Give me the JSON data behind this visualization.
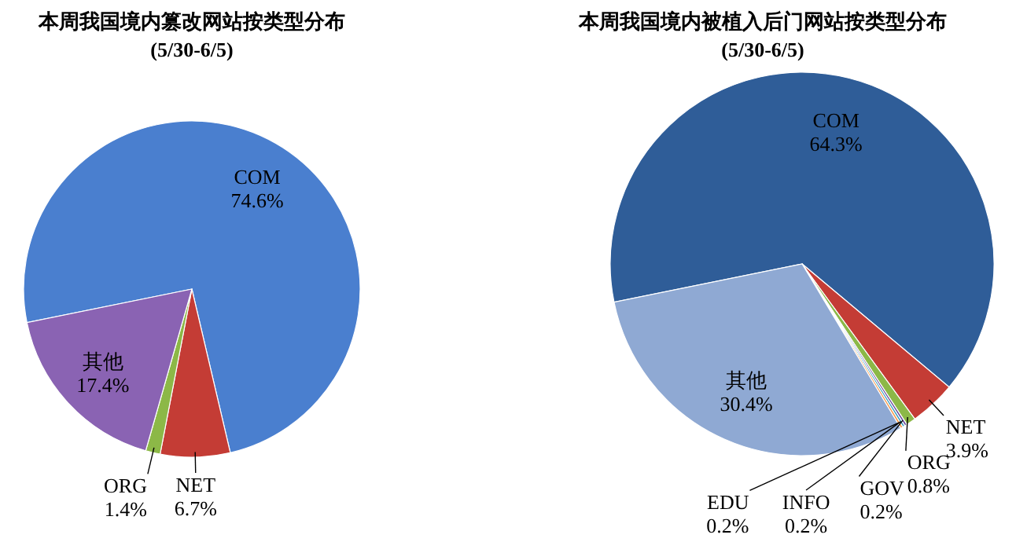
{
  "chart_data": [
    {
      "type": "pie",
      "title": "本周我国境内篡改网站按类型分布",
      "subtitle": "(5/30-6/5)",
      "categories": [
        "COM",
        "NET",
        "ORG",
        "其他"
      ],
      "values": [
        74.6,
        6.7,
        1.4,
        17.4
      ],
      "value_labels": [
        "74.6%",
        "6.7%",
        "1.4%",
        "17.4%"
      ],
      "colors": [
        "#4a7fcf",
        "#c43c35",
        "#8cb847",
        "#8a63b3"
      ]
    },
    {
      "type": "pie",
      "title": "本周我国境内被植入后门网站按类型分布",
      "subtitle": "(5/30-6/5)",
      "categories": [
        "COM",
        "NET",
        "ORG",
        "GOV",
        "INFO",
        "EDU",
        "其他"
      ],
      "values": [
        64.3,
        3.9,
        0.8,
        0.2,
        0.2,
        0.2,
        30.4
      ],
      "value_labels": [
        "64.3%",
        "3.9%",
        "0.8%",
        "0.2%",
        "0.2%",
        "0.2%",
        "30.4%"
      ],
      "colors": [
        "#2f5d98",
        "#c43c35",
        "#8cb847",
        "#6b4a9c",
        "#3a9fc0",
        "#f79646",
        "#8fa9d3"
      ]
    }
  ]
}
